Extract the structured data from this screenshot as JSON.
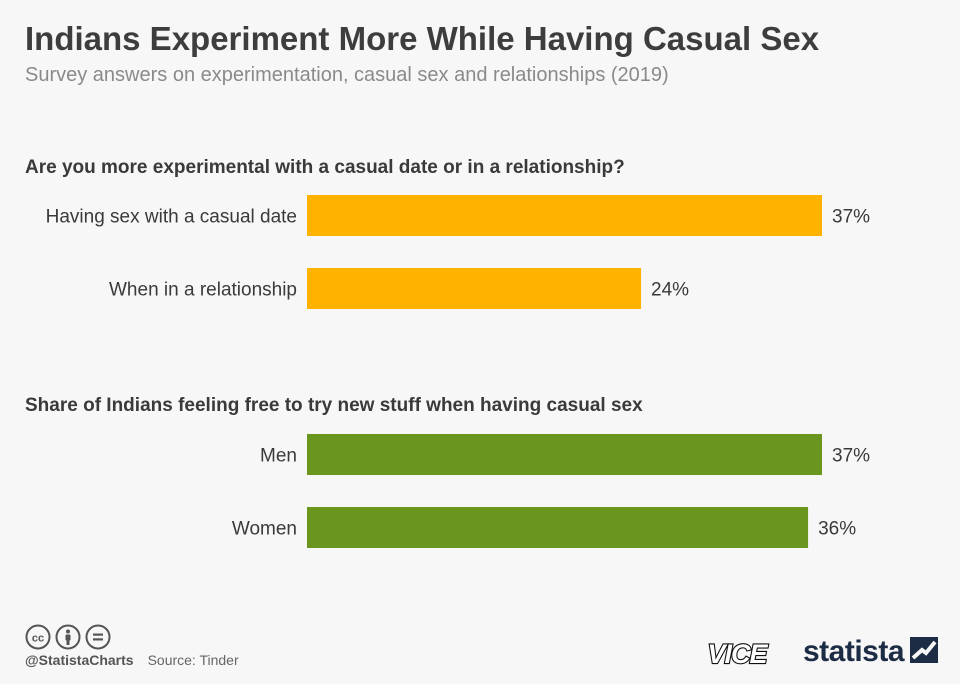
{
  "header": {
    "title": "Indians Experiment More While Having Casual Sex",
    "subtitle": "Survey answers on experimentation, casual sex and relationships (2019)"
  },
  "chart_data": [
    {
      "type": "bar",
      "orientation": "horizontal",
      "title": "Are you more experimental with a casual date or in a relationship?",
      "categories": [
        "Having sex with a casual date",
        "When in a relationship"
      ],
      "values": [
        37,
        24
      ],
      "value_labels": [
        "37%",
        "24%"
      ],
      "unit": "%",
      "color": "#ffb300",
      "grid": false
    },
    {
      "type": "bar",
      "orientation": "horizontal",
      "title": "Share of Indians feeling free to try new stuff when having casual sex",
      "categories": [
        "Men",
        "Women"
      ],
      "values": [
        37,
        36
      ],
      "value_labels": [
        "37%",
        "36%"
      ],
      "unit": "%",
      "color": "#6b961e",
      "grid": false
    }
  ],
  "footer": {
    "handle": "@StatistaCharts",
    "source": "Source: Tinder",
    "partner_logo": "VICE",
    "brand_logo": "statista",
    "icons": [
      "cc-icon",
      "by-icon",
      "nd-icon"
    ]
  }
}
